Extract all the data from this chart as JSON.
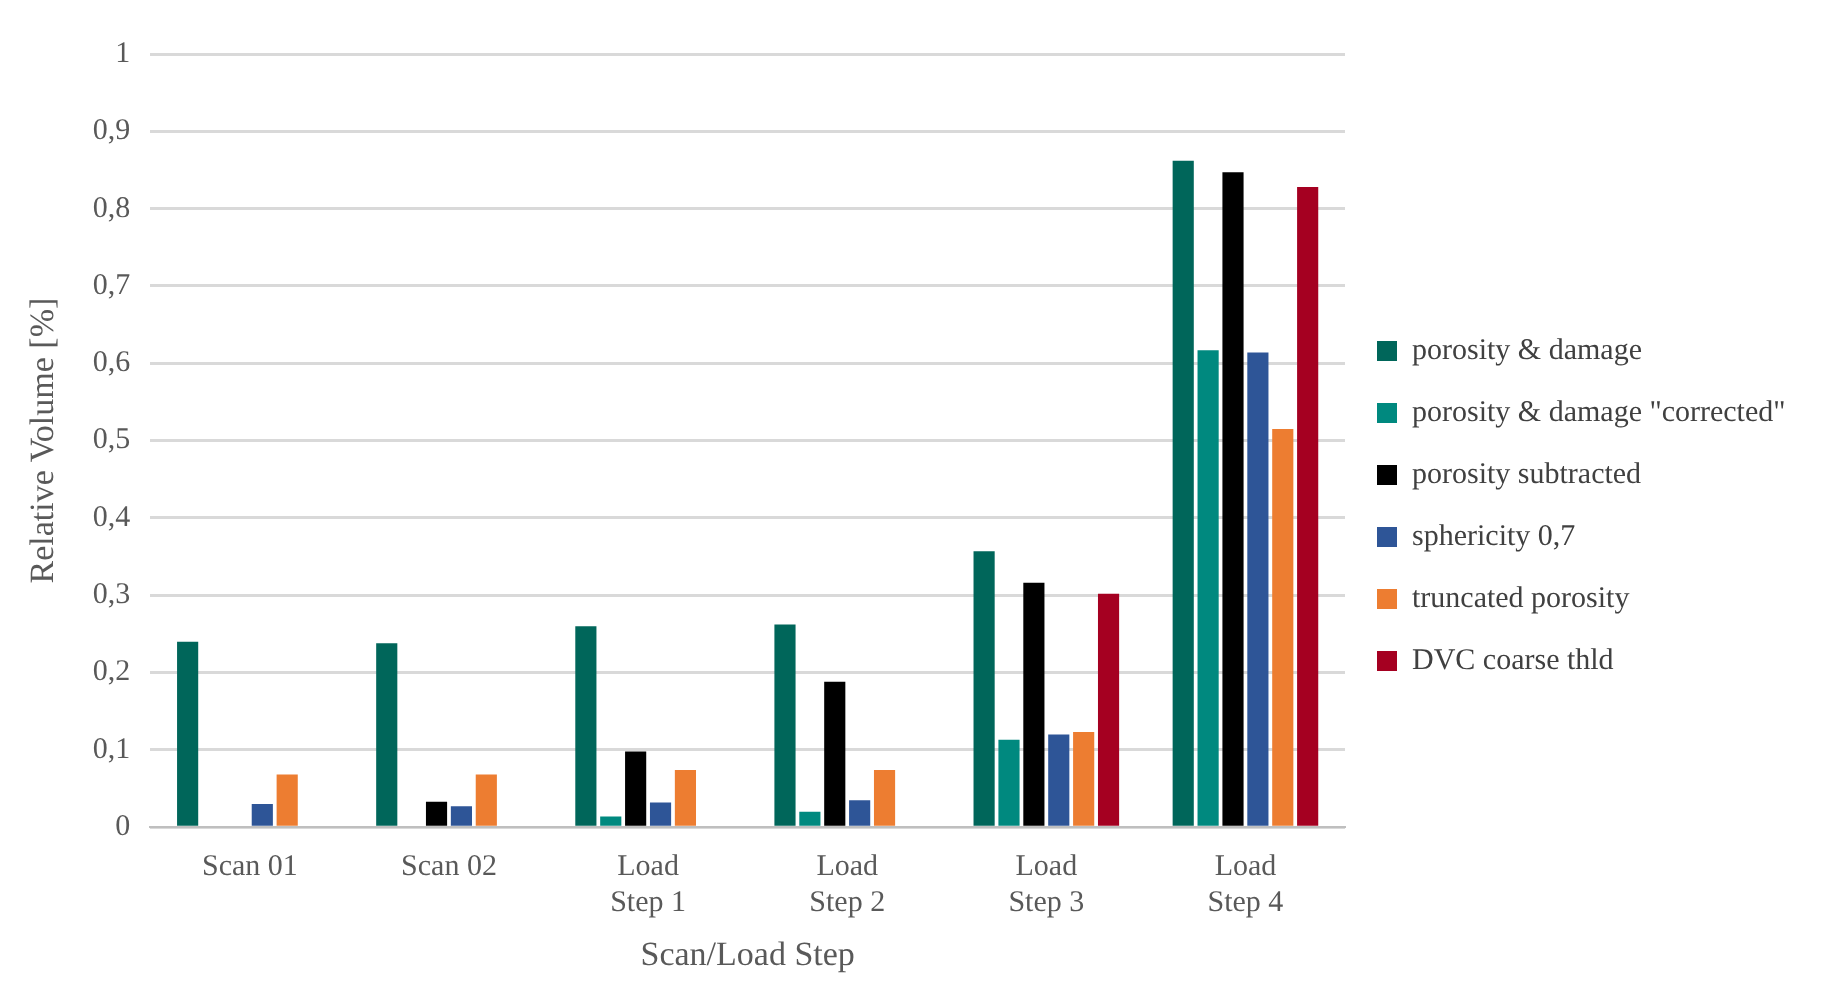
{
  "chart_data": {
    "type": "bar",
    "xlabel": "Scan/Load Step",
    "ylabel": "Relative Volume [%]",
    "categories": [
      "Scan 01",
      "Scan 02",
      "Load\nStep 1",
      "Load\nStep 2",
      "Load\nStep 3",
      "Load\nStep 4"
    ],
    "series": [
      {
        "name": "porosity & damage",
        "color": "#00665a",
        "values": [
          0.24,
          0.238,
          0.26,
          0.262,
          0.357,
          0.862
        ]
      },
      {
        "name": "porosity & damage \"corrected\"",
        "color": "#00897f",
        "values": [
          null,
          null,
          0.014,
          0.02,
          0.113,
          0.617
        ]
      },
      {
        "name": "porosity subtracted",
        "color": "#000000",
        "values": [
          null,
          0.033,
          0.098,
          0.188,
          0.316,
          0.847
        ]
      },
      {
        "name": "sphericity 0,7",
        "color": "#2e5597",
        "values": [
          0.03,
          0.027,
          0.032,
          0.035,
          0.12,
          0.614
        ]
      },
      {
        "name": "truncated porosity",
        "color": "#ed7d31",
        "values": [
          0.068,
          0.068,
          0.074,
          0.074,
          0.123,
          0.515
        ]
      },
      {
        "name": "DVC coarse thld",
        "color": "#a50021",
        "values": [
          null,
          null,
          null,
          null,
          0.302,
          0.828
        ]
      }
    ],
    "ylim": [
      0,
      1
    ],
    "yticks": [
      {
        "value": 0,
        "label": "0"
      },
      {
        "value": 0.1,
        "label": "0,1"
      },
      {
        "value": 0.2,
        "label": "0,2"
      },
      {
        "value": 0.3,
        "label": "0,3"
      },
      {
        "value": 0.4,
        "label": "0,4"
      },
      {
        "value": 0.5,
        "label": "0,5"
      },
      {
        "value": 0.6,
        "label": "0,6"
      },
      {
        "value": 0.7,
        "label": "0,7"
      },
      {
        "value": 0.8,
        "label": "0,8"
      },
      {
        "value": 0.9,
        "label": "0,9"
      },
      {
        "value": 1,
        "label": "1"
      }
    ],
    "grid": "y",
    "legend": "right"
  }
}
